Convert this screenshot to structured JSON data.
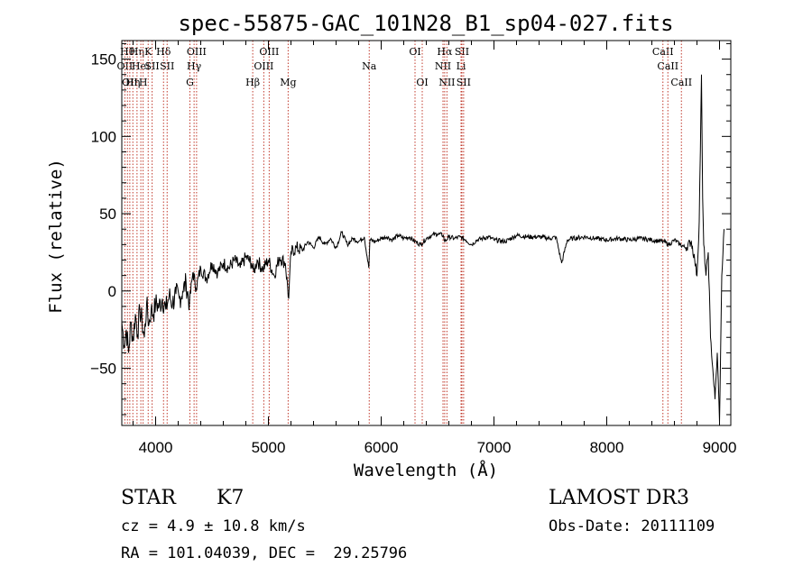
{
  "chart_data": {
    "type": "line",
    "title": "spec-55875-GAC_101N28_B1_sp04-027.fits",
    "xlabel": "Wavelength (Å)",
    "ylabel": "Flux (relative)",
    "xlim": [
      3700,
      9100
    ],
    "ylim": [
      -87,
      162
    ],
    "x_ticks": [
      4000,
      5000,
      6000,
      7000,
      8000,
      9000
    ],
    "y_ticks": [
      -50,
      0,
      50,
      100,
      150
    ],
    "series": [
      {
        "name": "flux",
        "x": [
          3700,
          3720,
          3740,
          3760,
          3780,
          3800,
          3820,
          3840,
          3860,
          3880,
          3900,
          3920,
          3940,
          3960,
          3980,
          4000,
          4030,
          4060,
          4090,
          4120,
          4150,
          4180,
          4210,
          4240,
          4270,
          4300,
          4330,
          4360,
          4400,
          4450,
          4500,
          4550,
          4600,
          4650,
          4700,
          4750,
          4800,
          4850,
          4870,
          4900,
          4950,
          5000,
          5050,
          5100,
          5150,
          5180,
          5200,
          5250,
          5300,
          5350,
          5400,
          5450,
          5500,
          5550,
          5600,
          5650,
          5700,
          5750,
          5800,
          5850,
          5890,
          5900,
          5950,
          6000,
          6050,
          6100,
          6150,
          6200,
          6250,
          6300,
          6350,
          6400,
          6450,
          6500,
          6550,
          6563,
          6600,
          6650,
          6700,
          6750,
          6800,
          6850,
          6900,
          6950,
          7000,
          7100,
          7200,
          7300,
          7400,
          7500,
          7550,
          7600,
          7650,
          7700,
          7800,
          7900,
          8000,
          8100,
          8200,
          8300,
          8400,
          8500,
          8550,
          8600,
          8650,
          8700,
          8750,
          8780,
          8800,
          8820,
          8840,
          8850,
          8860,
          8880,
          8900,
          8920,
          8940,
          8960,
          8980,
          9000,
          9020,
          9040
        ],
        "y": [
          -20,
          -35,
          -25,
          -40,
          -20,
          -32,
          -15,
          -28,
          -12,
          -20,
          -30,
          -8,
          -22,
          -12,
          -15,
          -8,
          -10,
          -5,
          -12,
          -3,
          -8,
          -2,
          -5,
          0,
          5,
          -8,
          12,
          2,
          15,
          8,
          18,
          12,
          18,
          15,
          20,
          15,
          22,
          18,
          12,
          20,
          14,
          20,
          10,
          22,
          18,
          -5,
          25,
          28,
          26,
          32,
          28,
          35,
          30,
          34,
          28,
          38,
          30,
          34,
          32,
          35,
          15,
          33,
          32,
          34,
          35,
          33,
          36,
          34,
          35,
          32,
          30,
          34,
          36,
          37,
          36,
          32,
          35,
          34,
          35,
          33,
          30,
          33,
          34,
          35,
          33,
          32,
          36,
          35,
          35,
          34,
          35,
          18,
          33,
          34,
          35,
          34,
          33,
          34,
          33,
          34,
          33,
          32,
          30,
          33,
          30,
          28,
          32,
          20,
          10,
          45,
          140,
          60,
          30,
          10,
          25,
          -30,
          -50,
          -70,
          -40,
          -85,
          10,
          40
        ]
      }
    ],
    "line_markers": [
      {
        "wave": 3727,
        "row": 1,
        "label": "OII"
      },
      {
        "wave": 3750,
        "row": 0,
        "label": "Hθ"
      },
      {
        "wave": 3771,
        "row": 2,
        "label": "OII"
      },
      {
        "wave": 3798,
        "row": 2,
        "label": "Hη"
      },
      {
        "wave": 3835,
        "row": 0,
        "label": "Hη"
      },
      {
        "wave": 3869,
        "row": 1,
        "label": "HeI"
      },
      {
        "wave": 3889,
        "row": 2,
        "label": "H"
      },
      {
        "wave": 3934,
        "row": 0,
        "label": "K"
      },
      {
        "wave": 3969,
        "row": 1,
        "label": "SII"
      },
      {
        "wave": 4070,
        "row": 0,
        "label": "Hδ"
      },
      {
        "wave": 4102,
        "row": 1,
        "label": "SII"
      },
      {
        "wave": 4304,
        "row": 2,
        "label": "G"
      },
      {
        "wave": 4341,
        "row": 1,
        "label": "Hγ"
      },
      {
        "wave": 4363,
        "row": 0,
        "label": "OIII"
      },
      {
        "wave": 4861,
        "row": 2,
        "label": "Hβ"
      },
      {
        "wave": 4959,
        "row": 1,
        "label": "OIII"
      },
      {
        "wave": 5007,
        "row": 0,
        "label": "OIII"
      },
      {
        "wave": 5175,
        "row": 2,
        "label": "Mg"
      },
      {
        "wave": 5894,
        "row": 1,
        "label": "Na"
      },
      {
        "wave": 6300,
        "row": 0,
        "label": "OI"
      },
      {
        "wave": 6364,
        "row": 2,
        "label": "OI"
      },
      {
        "wave": 6548,
        "row": 1,
        "label": "NII"
      },
      {
        "wave": 6563,
        "row": 0,
        "label": "Hα"
      },
      {
        "wave": 6583,
        "row": 2,
        "label": "NII"
      },
      {
        "wave": 6708,
        "row": 1,
        "label": "Li"
      },
      {
        "wave": 6716,
        "row": 0,
        "label": "SII"
      },
      {
        "wave": 6731,
        "row": 2,
        "label": "SII"
      },
      {
        "wave": 8498,
        "row": 0,
        "label": "CaII"
      },
      {
        "wave": 8542,
        "row": 1,
        "label": "CaII"
      },
      {
        "wave": 8662,
        "row": 2,
        "label": "CaII"
      }
    ]
  },
  "info": {
    "object_class": "STAR",
    "subclass": "K7",
    "survey": "LAMOST DR3",
    "redshift": "cz = 4.9 ± 10.8 km/s",
    "obs_date": "Obs-Date: 20111109",
    "coords": "RA = 101.04039, DEC =  29.25796"
  }
}
